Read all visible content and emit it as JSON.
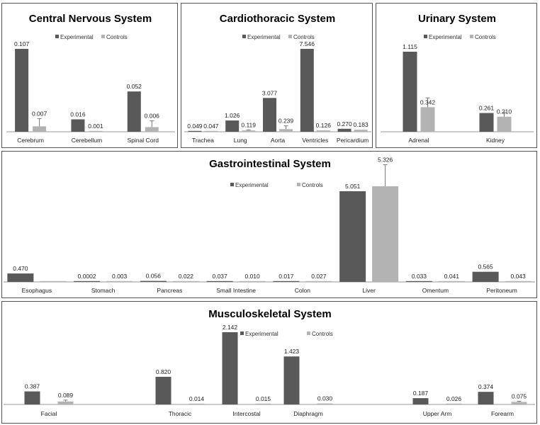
{
  "colors": {
    "experimental": "#595959",
    "controls": "#b3b3b3",
    "axis": "#999999",
    "error": "#777777"
  },
  "legend": {
    "experimental": "Experimental",
    "controls": "Controls"
  },
  "chart_data": [
    {
      "type": "bar",
      "title": "Central Nervous System",
      "categories": [
        "Cerebrum",
        "Cerebellum",
        "Spinal Cord"
      ],
      "series": [
        {
          "name": "Experimental",
          "values": [
            0.107,
            0.016,
            0.052
          ],
          "labels": [
            "0.107",
            "0.016",
            "0.052"
          ],
          "errors": [
            0,
            0,
            0
          ]
        },
        {
          "name": "Controls",
          "values": [
            0.007,
            0.001,
            0.006
          ],
          "labels": [
            "0.007",
            "0.001",
            "0.006"
          ],
          "errors": [
            0.01,
            0,
            0.008
          ]
        }
      ],
      "ylim": [
        0,
        0.107
      ]
    },
    {
      "type": "bar",
      "title": "Cardiothoracic System",
      "categories": [
        "Trachea",
        "Lung",
        "Aorta",
        "Ventricles",
        "Pericardium"
      ],
      "series": [
        {
          "name": "Experimental",
          "values": [
            0.049,
            1.026,
            3.077,
            7.546,
            0.27
          ],
          "labels": [
            "0.049",
            "1.026",
            "3.077",
            "7.546",
            "0.270"
          ],
          "errors": [
            0,
            0,
            0,
            0,
            0
          ]
        },
        {
          "name": "Controls",
          "values": [
            0.047,
            0.119,
            0.239,
            0.126,
            0.183
          ],
          "labels": [
            "0.047",
            "0.119",
            "0.239",
            "0.126",
            "0.183"
          ],
          "errors": [
            0,
            0.05,
            0.3,
            0,
            0
          ]
        }
      ],
      "ylim": [
        0,
        7.546
      ]
    },
    {
      "type": "bar",
      "title": "Urinary System",
      "categories": [
        "Adrenal",
        "Kidney"
      ],
      "series": [
        {
          "name": "Experimental",
          "values": [
            1.115,
            0.261
          ],
          "labels": [
            "1.115",
            "0.261"
          ],
          "errors": [
            0,
            0
          ]
        },
        {
          "name": "Controls",
          "values": [
            0.342,
            0.21
          ],
          "labels": [
            "0.342",
            "0.210"
          ],
          "errors": [
            0.13,
            0.06
          ]
        }
      ],
      "ylim": [
        0,
        1.115
      ]
    },
    {
      "type": "bar",
      "title": "Gastrointestinal System",
      "categories": [
        "Esophagus",
        "Stomach",
        "Pancreas",
        "Small Intestine",
        "Colon",
        "Liver",
        "Omentum",
        "Peritoneum"
      ],
      "series": [
        {
          "name": "Experimental",
          "values": [
            0.47,
            0.0002,
            0.056,
            0.037,
            0.017,
            5.051,
            0.033,
            0.565
          ],
          "labels": [
            "0.470",
            "0.0002",
            "0.056",
            "0.037",
            "0.017",
            "5.051",
            "0.033",
            "0.565"
          ],
          "errors": [
            0,
            0,
            0,
            0,
            0,
            0,
            0,
            0
          ]
        },
        {
          "name": "Controls",
          "values": [
            0.0002,
            0.003,
            0.022,
            0.01,
            0.027,
            5.326,
            0.041,
            0.043
          ],
          "labels": [
            "",
            "0.003",
            "0.022",
            "0.010",
            "0.027",
            "5.326",
            "0.041",
            "0.043"
          ],
          "errors": [
            0,
            0,
            0,
            0,
            0,
            1.2,
            0,
            0
          ]
        }
      ],
      "ylim": [
        0,
        5.326
      ]
    },
    {
      "type": "bar",
      "title": "Musculoskeletal System",
      "categories": [
        "Facial",
        "Thoracic",
        "Intercostal",
        "Diaphragm",
        "Upper Arm",
        "Forearm"
      ],
      "series": [
        {
          "name": "Experimental",
          "values": [
            0.387,
            0.82,
            2.142,
            1.423,
            0.187,
            0.374
          ],
          "labels": [
            "0.387",
            "0.820",
            "2.142",
            "1.423",
            "0.187",
            "0.374"
          ],
          "errors": [
            0,
            0,
            0,
            0,
            0,
            0
          ]
        },
        {
          "name": "Controls",
          "values": [
            0.089,
            0.014,
            0.015,
            0.03,
            0.026,
            0.075
          ],
          "labels": [
            "0.089",
            "0.014",
            "0.015",
            "0.030",
            "0.026",
            "0.075"
          ],
          "errors": [
            0.04,
            0,
            0,
            0,
            0,
            0.02
          ]
        }
      ],
      "ylim": [
        0,
        2.142
      ]
    }
  ]
}
